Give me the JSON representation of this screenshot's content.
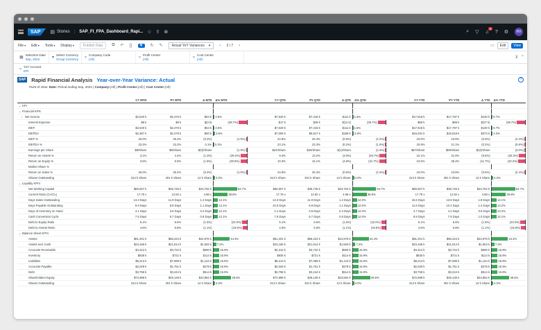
{
  "shell": {
    "logo": "SAP",
    "nav": "Stories",
    "title": "SAP_FI_FPA_Dashboard_Rapi...",
    "notifications": "5",
    "avatar": "NV"
  },
  "toolbar": {
    "menus": [
      "File",
      "Edit",
      "Tools",
      "Display"
    ],
    "publish": "Publish Data",
    "version": "Actual YoY Variances",
    "pager": "2 / 7",
    "edit": "Edit",
    "view": "View"
  },
  "filters": [
    {
      "label": "Selection Date",
      "value": "Sep, 2024"
    },
    {
      "label": "Select Currency",
      "value": "Group Currency"
    },
    {
      "label": "Company Code",
      "value": "(All)"
    },
    {
      "label": "Profit Center",
      "value": "(All)"
    },
    {
      "label": "Cost Center",
      "value": "(All)"
    }
  ],
  "filters2": [
    {
      "label": "YoY Account",
      "value": "KPI"
    }
  ],
  "report": {
    "logo": "SAP",
    "title": "Rapid Financial Analysis",
    "subtitle": "Year-over-Year Variance: Actual",
    "pov_label": "Point of View:",
    "pov_date_label": "Date:",
    "pov_date": "Period ending Sep, 2024",
    "pov_company_label": "Company:",
    "pov_company": "(All)",
    "pov_pc_label": "Profit Center:",
    "pov_pc": "(All)",
    "pov_cc_label": "Cost Center:",
    "pov_cc": "(All)"
  },
  "columns": [
    "CY MTD",
    "PY MTD",
    "Δ MTD",
    "Δ% MTD",
    "CY QTD",
    "PY QTD",
    "Δ QTD",
    "Δ% QTD",
    "CY YTD",
    "PY YTD",
    "Δ YTD",
    "Δ% YTD"
  ],
  "rows": [
    {
      "label": "KPI",
      "level": 0,
      "chev": "⌄"
    },
    {
      "label": "Financial KPIs",
      "level": 1,
      "chev": "⌄"
    },
    {
      "label": "Net income",
      "level": 2,
      "chev": "›",
      "v": [
        "$2,540 k",
        "$2,476 k",
        "$64 k",
        "2.6%",
        "$7,529 k",
        "$7,418 k",
        "$111 k",
        "1.5%",
        "$17,918 k",
        "$17,787 k",
        "$130 k",
        "0.7%"
      ],
      "b": [
        2.6,
        1.5,
        0.7
      ]
    },
    {
      "label": "Interest Expense",
      "level": 3,
      "v": [
        "$6 k",
        "$9 k",
        "$(3 k)",
        "(38.7%)",
        "$17 k",
        "$28 k",
        "$(11 k)",
        "(38.7%)",
        "$59 k",
        "$96 k",
        "$(37 k)",
        "(38.7%)"
      ],
      "b": [
        -38.7,
        -38.7,
        -38.7
      ]
    },
    {
      "label": "EBIT",
      "level": 3,
      "v": [
        "$2,540 k",
        "$2,476 k",
        "$64 k",
        "2.6%",
        "$7,529 k",
        "$7,418 k",
        "$111 k",
        "1.5%",
        "$17,918 k",
        "$17,787 k",
        "$130 k",
        "0.7%"
      ],
      "b": [
        2.6,
        1.5,
        0.7
      ]
    },
    {
      "label": "EBITDA",
      "level": 3,
      "v": [
        "$2,367 k",
        "$2,278 k",
        "$90 k",
        "3.9%",
        "$7,005 k",
        "$6,817 k",
        "$188 k",
        "2.8%",
        "$16,291 k",
        "$15,918 k",
        "$373 k",
        "2.3%"
      ],
      "b": [
        3.9,
        2.8,
        2.3
      ]
    },
    {
      "label": "EBIT %",
      "level": 3,
      "v": [
        "25.0%",
        "25.2%",
        "(0.2%)",
        "(1.0%)",
        "24.8%",
        "25.4%",
        "(0.6%)",
        "(2.2%)",
        "23.0%",
        "23.5%",
        "(0.6%)",
        "(2.4%)"
      ],
      "b": [
        -1.0,
        -2.2,
        -2.4
      ]
    },
    {
      "label": "EBITDA %",
      "level": 3,
      "v": [
        "23.3%",
        "23.2%",
        "0.1%",
        "0.3%",
        "23.1%",
        "23.3%",
        "(0.2%)",
        "(1.0%)",
        "20.9%",
        "21.1%",
        "(0.2%)",
        "(0.8%)"
      ],
      "b": [
        0.3,
        -1.0,
        -0.8
      ]
    },
    {
      "label": "Earnings per Share",
      "level": 3,
      "v": [
        "$8/Share",
        "$8/Share",
        "$(0)/Share",
        "(1.3%)",
        "$24/Share",
        "$25/Share",
        "$(1)/Share",
        "(2.4%)",
        "$57/Share",
        "$59/Share",
        "$(2)/Share",
        "(3.0%)"
      ],
      "b": [
        -1.3,
        -2.4,
        -3.0
      ]
    },
    {
      "label": "Return on Assets %",
      "level": 3,
      "v": [
        "3.1%",
        "4.4%",
        "(1.3%)",
        "(29.0%)",
        "9.3%",
        "13.2%",
        "(3.9%)",
        "(29.7%)",
        "22.1%",
        "31.6%",
        "(9.6%)",
        "(30.3%)"
      ],
      "b": [
        -29.0,
        -29.7,
        -30.3
      ]
    },
    {
      "label": "Return on Equity %",
      "level": 3,
      "v": [
        "3.5%",
        "5.0%",
        "(1.6%)",
        "(30.9%)",
        "10.3%",
        "15.1%",
        "(4.8%)",
        "(31.7%)",
        "24.5%",
        "36.2%",
        "(11.7%)",
        "(32.2%)"
      ],
      "b": [
        -30.9,
        -31.7,
        -32.2
      ]
    },
    {
      "label": "Market Share %",
      "level": 3,
      "v": [
        "",
        "",
        "",
        "",
        "",
        "",
        "",
        "",
        "",
        "",
        "",
        ""
      ],
      "b": [
        0,
        0,
        0
      ]
    },
    {
      "label": "Return on Sales %",
      "level": 3,
      "v": [
        "25.0%",
        "25.2%",
        "(0.2%)",
        "(1.0%)",
        "24.8%",
        "25.4%",
        "(0.6%)",
        "(2.2%)",
        "23.0%",
        "23.5%",
        "(0.6%)",
        "(2.4%)"
      ],
      "b": [
        -1.0,
        -2.2,
        -2.4
      ]
    },
    {
      "label": "Shares Outstanding",
      "level": 3,
      "v": [
        "313 k Share",
        "301 k Share",
        "12 k Share",
        "4.0%",
        "313 k Share",
        "301 k Share",
        "12 k Share",
        "4.0%",
        "313 k Share",
        "301 k Share",
        "12 k Share",
        "4.0%"
      ],
      "b": [
        4.0,
        4.0,
        4.0
      ]
    },
    {
      "label": "Liquidity KPI's",
      "level": 1,
      "chev": "⌄"
    },
    {
      "label": "Net Working Capital",
      "level": 3,
      "v": [
        "$60,507 k",
        "$36,745 k",
        "$23,762 k",
        "64.7%",
        "$60,507 k",
        "$36,745 k",
        "$23,762 k",
        "64.7%",
        "$60,507 k",
        "$36,745 k",
        "$23,762 k",
        "64.7%"
      ],
      "b": [
        64.7,
        64.7,
        64.7
      ]
    },
    {
      "label": "Current Ratio (CA/CL)",
      "level": 3,
      "v": [
        "17.79 x",
        "12.82 x",
        "4.98 x",
        "38.8%",
        "17.79 x",
        "12.82 x",
        "4.98 x",
        "38.8%",
        "17.79 x",
        "12.82 x",
        "4.98 x",
        "38.8%"
      ],
      "b": [
        38.8,
        38.8,
        38.8
      ]
    },
    {
      "label": "Days Sales Outstanding",
      "level": 3,
      "v": [
        "13.3 Days",
        "11.9 Days",
        "1.4 Days",
        "12.1%",
        "13.3 Days",
        "11.9 Days",
        "1.4 Days",
        "12.0%",
        "15.6 Days",
        "13.8 Days",
        "1.8 Days",
        "13.1%"
      ],
      "b": [
        12.1,
        12.0,
        13.1
      ]
    },
    {
      "label": "Days Payable Outstanding",
      "level": 3,
      "v": [
        "9.9 Days",
        "8.8 Days",
        "1.1 Days",
        "12.1%",
        "10.0 Days",
        "8.9 Days",
        "1.1 Days",
        "12.0%",
        "11.6 Days",
        "10.3 Days",
        "1.4 Days",
        "13.2%"
      ],
      "b": [
        12.1,
        12.0,
        13.2
      ]
    },
    {
      "label": "Days of Inventory on Hand",
      "level": 3,
      "v": [
        "4.1 Days",
        "3.6 Days",
        "0.4 Days",
        "12.1%",
        "4.1 Days",
        "3.6 Days",
        "0.4 Days",
        "12.0%",
        "4.7 Days",
        "4.2 Days",
        "0.6 Days",
        "13.2%"
      ],
      "b": [
        12.1,
        12.0,
        13.2
      ]
    },
    {
      "label": "Cash Conversion Cycle",
      "level": 3,
      "v": [
        "7.5 Days",
        "6.7 Days",
        "0.8 Days",
        "12.1%",
        "7.5 Days",
        "6.7 Days",
        "0.8 Days",
        "12.0%",
        "8.8 Days",
        "7.8 Days",
        "1.0 Days",
        "13.1%"
      ],
      "b": [
        12.1,
        12.0,
        13.1
      ]
    },
    {
      "label": "Debt to Equity Ratio",
      "level": 3,
      "v": [
        "5.1%",
        "6.6%",
        "(1.5%)",
        "(22.0%)",
        "5.1%",
        "6.6%",
        "(1.5%)",
        "(22.0%)",
        "5.1%",
        "6.6%",
        "(1.5%)",
        "(22.0%)"
      ],
      "b": [
        -22.0,
        -22.0,
        -22.0
      ]
    },
    {
      "label": "Debt to Assets Ratio",
      "level": 3,
      "v": [
        "4.6%",
        "5.8%",
        "(1.1%)",
        "(19.8%)",
        "4.6%",
        "5.8%",
        "(1.1%)",
        "(19.8%)",
        "4.6%",
        "5.8%",
        "(1.1%)",
        "(19.8%)"
      ],
      "b": [
        -19.8,
        -19.8,
        -19.8
      ]
    },
    {
      "label": "Balance Sheet KPI's",
      "level": 1,
      "chev": "⌄"
    },
    {
      "label": "Assets",
      "level": 3,
      "v": [
        "$81,201 k",
        "$56,224 k",
        "$24,976 k",
        "44.4%",
        "$81,201 k",
        "$56,224 k",
        "$24,976 k",
        "44.4%",
        "$81,201 k",
        "$56,224 k",
        "$24,976 k",
        "44.4%"
      ],
      "b": [
        44.4,
        44.4,
        44.4
      ]
    },
    {
      "label": "Assets excl Cash",
      "level": 3,
      "v": [
        "$23,166 k",
        "$21,614 k",
        "$1,553 k",
        "7.2%",
        "$23,166 k",
        "$21,614 k",
        "$1,553 k",
        "7.2%",
        "$23,166 k",
        "$21,614 k",
        "$1,553 k",
        "7.2%"
      ],
      "b": [
        7.2,
        7.2,
        7.2
      ]
    },
    {
      "label": "Accounts Receivable",
      "level": 3,
      "v": [
        "$4,312 k",
        "$3,722 k",
        "$590 k",
        "15.9%",
        "$4,312 k",
        "$3,722 k",
        "$590 k",
        "15.9%",
        "$4,312 k",
        "$3,722 k",
        "$590 k",
        "15.9%"
      ],
      "b": [
        15.9,
        15.9,
        15.9
      ]
    },
    {
      "label": "Inventory",
      "level": 3,
      "v": [
        "$835 k",
        "$721 k",
        "$114 k",
        "15.9%",
        "$835 k",
        "$721 k",
        "$114 k",
        "15.9%",
        "$835 k",
        "$721 k",
        "$114 k",
        "15.9%"
      ],
      "b": [
        15.9,
        15.9,
        15.9
      ]
    },
    {
      "label": "Liabilities",
      "level": 3,
      "v": [
        "$8,213 k",
        "$7,089 k",
        "$1,124 k",
        "15.9%",
        "$8,213 k",
        "$7,089 k",
        "$1,124 k",
        "15.9%",
        "$8,213 k",
        "$7,089 k",
        "$1,124 k",
        "15.9%"
      ],
      "b": [
        15.9,
        15.9,
        15.9
      ]
    },
    {
      "label": "Accounts Payable",
      "level": 3,
      "v": [
        "$2,029 k",
        "$1,751 k",
        "$278 k",
        "15.9%",
        "$2,029 k",
        "$1,751 k",
        "$278 k",
        "15.9%",
        "$2,029 k",
        "$1,751 k",
        "$278 k",
        "15.9%"
      ],
      "b": [
        15.9,
        15.9,
        15.9
      ]
    },
    {
      "label": "Debt",
      "level": 3,
      "v": [
        "$3,758 k",
        "$3,244 k",
        "$514 k",
        "15.9%",
        "$3,758 k",
        "$3,244 k",
        "$514 k",
        "15.9%",
        "$3,758 k",
        "$3,244 k",
        "$514 k",
        "15.9%"
      ],
      "b": [
        15.9,
        15.9,
        15.9
      ]
    },
    {
      "label": "Shareholders Equity",
      "level": 3,
      "v": [
        "$72,988 k",
        "$49,136 k",
        "$23,852 k",
        "48.5%",
        "$72,988 k",
        "$49,136 k",
        "$23,852 k",
        "48.5%",
        "$72,988 k",
        "$49,136 k",
        "$23,852 k",
        "48.5%"
      ],
      "b": [
        48.5,
        48.5,
        48.5
      ]
    },
    {
      "label": "Shares Outstanding",
      "level": 3,
      "v": [
        "313 k Share",
        "301 k Share",
        "12 k Share",
        "4.0%",
        "313 k Share",
        "301 k Share",
        "12 k Share",
        "4.0%",
        "313 k Share",
        "301 k Share",
        "12 k Share",
        "4.0%"
      ],
      "b": [
        4.0,
        4.0,
        4.0
      ]
    }
  ],
  "colors": {
    "positive": "#3fa75a",
    "negative": "#e34a6f",
    "accent": "#0a6ed1",
    "shell": "#12171c"
  }
}
